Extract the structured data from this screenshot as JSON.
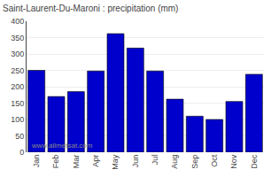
{
  "chart_data": {
    "type": "bar",
    "title": "Saint-Laurent-Du-Maroni : precipitation (mm)",
    "categories": [
      "Jan",
      "Feb",
      "Mar",
      "Apr",
      "May",
      "Jun",
      "Jul",
      "Aug",
      "Sep",
      "Oct",
      "Nov",
      "Dec"
    ],
    "values": [
      250,
      170,
      185,
      248,
      362,
      318,
      248,
      162,
      110,
      100,
      155,
      238
    ],
    "color": "#0000cc",
    "ylim": [
      0,
      400
    ],
    "yticks": [
      0,
      50,
      100,
      150,
      200,
      250,
      300,
      350,
      400
    ],
    "grid": true,
    "annotations": [
      "www.allmetsat.com"
    ]
  }
}
